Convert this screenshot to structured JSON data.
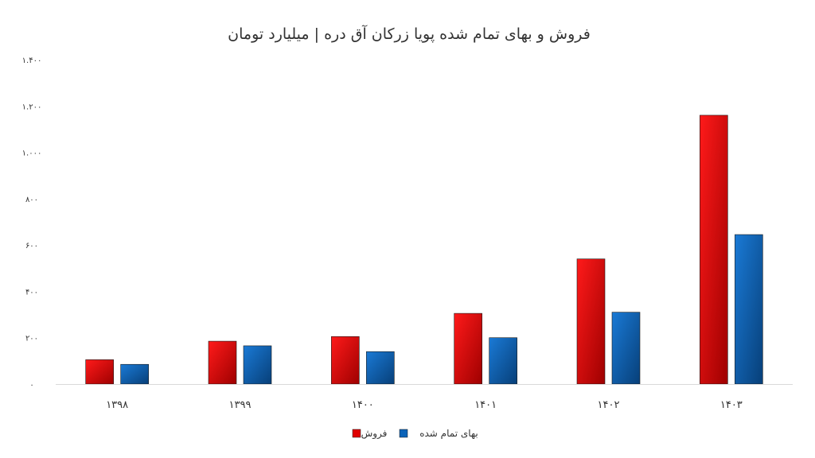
{
  "chart_data": {
    "type": "bar",
    "title": "فروش و بهای تمام شده پویا زرکان آق دره | میلیارد تومان",
    "xlabel": "",
    "ylabel": "",
    "categories": [
      "۱۳۹۸",
      "۱۳۹۹",
      "۱۴۰۰",
      "۱۴۰۱",
      "۱۴۰۲",
      "۱۴۰۳"
    ],
    "series": [
      {
        "name": "فروش",
        "values": [
          105,
          185,
          205,
          305,
          540,
          1160
        ],
        "color": "#e00000"
      },
      {
        "name": "بهای تمام شده",
        "values": [
          85,
          165,
          140,
          200,
          310,
          645
        ],
        "color": "#0b63b8"
      }
    ],
    "ylim": [
      0,
      1400
    ],
    "yticks": [
      0,
      200,
      400,
      600,
      800,
      1000,
      1200,
      1400
    ],
    "ytick_labels": [
      "۰",
      "۲۰۰",
      "۴۰۰",
      "۶۰۰",
      "۸۰۰",
      "۱.۰۰۰",
      "۱.۲۰۰",
      "۱.۴۰۰"
    ],
    "grid": false,
    "legend_position": "bottom"
  }
}
